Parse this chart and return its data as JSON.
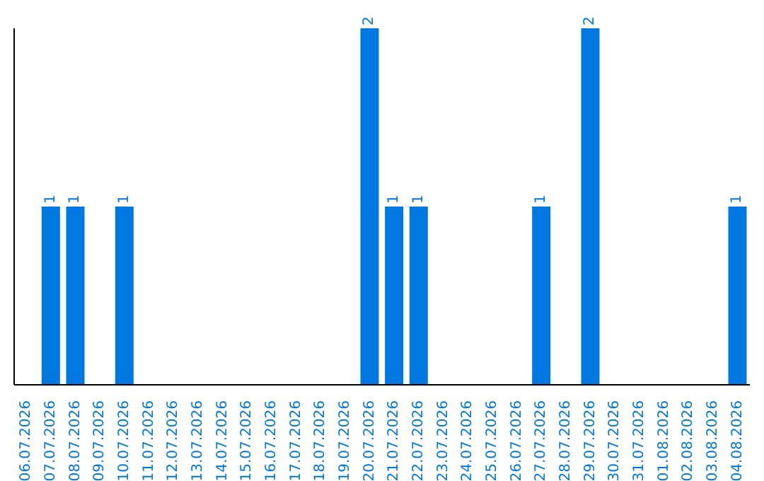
{
  "chart_data": {
    "type": "bar",
    "categories": [
      "06.07.2026",
      "07.07.2026",
      "08.07.2026",
      "09.07.2026",
      "10.07.2026",
      "11.07.2026",
      "12.07.2026",
      "13.07.2026",
      "14.07.2026",
      "15.07.2026",
      "16.07.2026",
      "17.07.2026",
      "18.07.2026",
      "19.07.2026",
      "20.07.2026",
      "21.07.2026",
      "22.07.2026",
      "23.07.2026",
      "24.07.2026",
      "25.07.2026",
      "26.07.2026",
      "27.07.2026",
      "28.07.2026",
      "29.07.2026",
      "30.07.2026",
      "31.07.2026",
      "01.08.2026",
      "02.08.2026",
      "03.08.2026",
      "04.08.2026"
    ],
    "values": [
      0,
      1,
      1,
      0,
      1,
      0,
      0,
      0,
      0,
      0,
      0,
      0,
      0,
      0,
      2,
      1,
      1,
      0,
      0,
      0,
      0,
      1,
      0,
      2,
      0,
      0,
      0,
      0,
      0,
      1
    ],
    "value_labels": [
      null,
      "1",
      "1",
      null,
      "1",
      null,
      null,
      null,
      null,
      null,
      null,
      null,
      null,
      null,
      "2",
      "1",
      "1",
      null,
      null,
      null,
      null,
      "1",
      null,
      "2",
      null,
      null,
      null,
      null,
      null,
      "1"
    ],
    "color": "#0078e1",
    "grid": false,
    "legend": false
  }
}
